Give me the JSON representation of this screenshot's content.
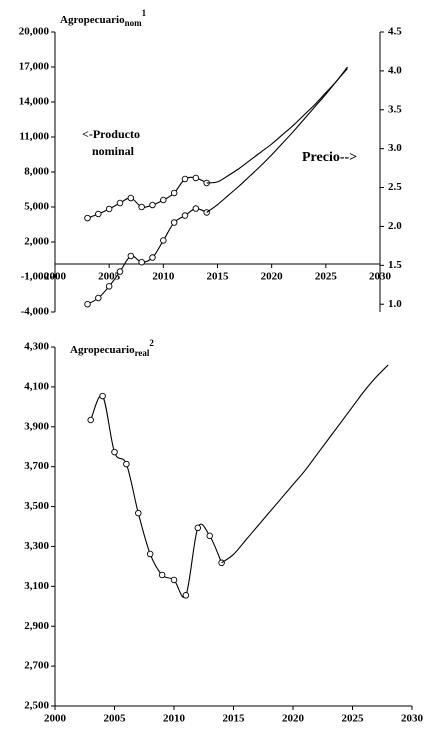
{
  "chart_data": [
    {
      "type": "line",
      "title": "Agropecuario",
      "title_sub": "nom",
      "title_sup": "1",
      "annotations": [
        "<-Producto",
        "nominal",
        "Precio-->"
      ],
      "x": [
        2003,
        2004,
        2005,
        2006,
        2007,
        2008,
        2009,
        2010,
        2011,
        2012,
        2013,
        2014,
        2015,
        2016,
        2017,
        2018,
        2019,
        2020,
        2021,
        2022,
        2023,
        2024,
        2025,
        2026,
        2027
      ],
      "xlim": [
        2000,
        2030
      ],
      "xticks": [
        2000,
        2005,
        2010,
        2015,
        2020,
        2025,
        2030
      ],
      "ylim": [
        -4000,
        20000
      ],
      "yticks": [
        {
          "value": -4000,
          "label": "-4,000"
        },
        {
          "value": -1000,
          "label": "-1,000"
        },
        {
          "value": 2000,
          "label": "2,000"
        },
        {
          "value": 5000,
          "label": "5,000"
        },
        {
          "value": 8000,
          "label": "8,000"
        },
        {
          "value": 11000,
          "label": "11,000"
        },
        {
          "value": 14000,
          "label": "14,000"
        },
        {
          "value": 17000,
          "label": "17,000"
        },
        {
          "value": 20000,
          "label": "20,000"
        }
      ],
      "y2lim": [
        0.9,
        4.5
      ],
      "y2ticks": [
        {
          "value": 1,
          "label": "1.0"
        },
        1.5,
        {
          "value": 2,
          "label": "2.0"
        },
        2.5,
        {
          "value": 3,
          "label": "3.0"
        },
        3.5,
        {
          "value": 4,
          "label": "4.0"
        },
        4.5
      ],
      "series": [
        {
          "color": "#000000",
          "markers": true,
          "values": [
            4050,
            4400,
            4830,
            5340,
            5770,
            5000,
            5170,
            5600,
            6200,
            7400,
            7490,
            7060,
            null,
            null,
            null,
            null,
            null,
            null,
            null,
            null,
            null,
            null,
            null,
            null,
            null
          ]
        },
        {
          "color": "#000000",
          "markers": false,
          "values": [
            null,
            null,
            null,
            null,
            null,
            null,
            null,
            null,
            null,
            null,
            null,
            7060,
            7150,
            7700,
            8300,
            9000,
            9700,
            10400,
            11200,
            12000,
            12900,
            13800,
            14800,
            15800,
            17000
          ]
        },
        {
          "color": "#000000",
          "markers": true,
          "axis": "y2",
          "values": [
            1.0,
            1.08,
            1.23,
            1.42,
            1.62,
            1.54,
            1.6,
            1.82,
            2.05,
            2.14,
            2.23,
            2.18,
            null,
            null,
            null,
            null,
            null,
            null,
            null,
            null,
            null,
            null,
            null,
            null,
            null
          ]
        },
        {
          "color": "#000000",
          "markers": false,
          "axis": "y2",
          "values": [
            null,
            null,
            null,
            null,
            null,
            null,
            null,
            null,
            null,
            null,
            null,
            2.18,
            2.28,
            2.4,
            2.52,
            2.65,
            2.78,
            2.92,
            3.07,
            3.22,
            3.38,
            3.54,
            3.7,
            3.87,
            4.03
          ]
        }
      ]
    },
    {
      "type": "line",
      "title": "Agropecuario",
      "title_sub": "real",
      "title_sup": "2",
      "x": [
        2003,
        2004,
        2005,
        2006,
        2007,
        2008,
        2009,
        2010,
        2011,
        2012,
        2013,
        2014,
        2015,
        2016,
        2017,
        2018,
        2019,
        2020,
        2021,
        2022,
        2023,
        2024,
        2025,
        2026,
        2027,
        2028
      ],
      "xlim": [
        2000,
        2030
      ],
      "xticks": [
        2000,
        2005,
        2010,
        2015,
        2020,
        2025,
        2030
      ],
      "ylim": [
        2500,
        4300
      ],
      "yticks": [
        {
          "value": 2500,
          "label": "2,500"
        },
        {
          "value": 2700,
          "label": "2,700"
        },
        {
          "value": 2900,
          "label": "2,900"
        },
        {
          "value": 3100,
          "label": "3,100"
        },
        {
          "value": 3300,
          "label": "3,300"
        },
        {
          "value": 3500,
          "label": "3,500"
        },
        {
          "value": 3700,
          "label": "3,700"
        },
        {
          "value": 3900,
          "label": "3,900"
        },
        {
          "value": 4100,
          "label": "4,100"
        },
        {
          "value": 4300,
          "label": "4,300"
        }
      ],
      "series": [
        {
          "color": "#000000",
          "markers": true,
          "values": [
            3934,
            4054,
            3773,
            3713,
            3467,
            3262,
            3157,
            3132,
            3055,
            3393,
            3353,
            3218,
            null,
            null,
            null,
            null,
            null,
            null,
            null,
            null,
            null,
            null,
            null,
            null,
            null,
            null
          ]
        },
        {
          "color": "#000000",
          "markers": false,
          "values": [
            null,
            null,
            null,
            null,
            null,
            null,
            null,
            null,
            null,
            null,
            null,
            3218,
            3260,
            3330,
            3400,
            3470,
            3540,
            3610,
            3680,
            3760,
            3840,
            3920,
            4000,
            4080,
            4150,
            4210
          ]
        }
      ]
    }
  ]
}
